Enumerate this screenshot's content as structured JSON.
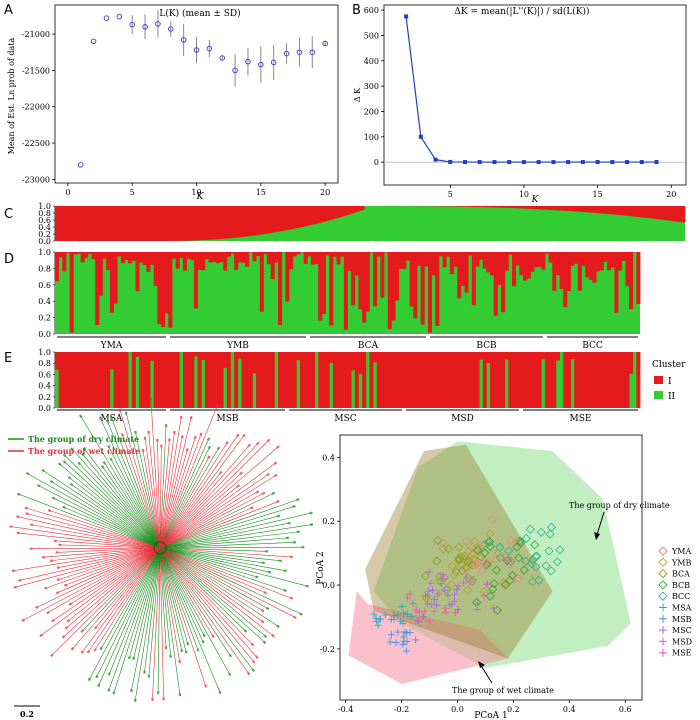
{
  "panels": {
    "A": {
      "label": "A",
      "title": "L(K) (mean ± SD)",
      "ylabel": "Mean of Est. Ln prob of data",
      "xlabel": "K"
    },
    "B": {
      "label": "B",
      "title": "ΔK = mean(|L''(K)|) / sd(L(K))",
      "ylabel": "Δ K",
      "xlabel": "K"
    },
    "C": {
      "label": "C"
    },
    "D": {
      "label": "D",
      "groups": [
        "YMA",
        "YMB",
        "BCA",
        "BCB",
        "BCC"
      ]
    },
    "E": {
      "label": "E",
      "groups": [
        "MSA",
        "MSB",
        "MSC",
        "MSD",
        "MSE"
      ]
    },
    "legend_cluster": {
      "title": "Cluster",
      "items": [
        {
          "name": "I",
          "color": "#e41a1c"
        },
        {
          "name": "II",
          "color": "#33cc33"
        }
      ]
    },
    "tree": {
      "legend_dry": "The group of dry climate",
      "legend_wet": "The group of wet climate",
      "scale_label": "0.2",
      "dry_color": "#1a8a1a",
      "wet_color": "#e8303a"
    },
    "pcoa": {
      "xlabel": "PCoA 1",
      "ylabel": "PCoA 2",
      "annotation_dry": "The group of dry climate",
      "annotation_wet": "The group of wet climate",
      "legend": [
        {
          "name": "YMA",
          "color": "#e8857a",
          "shape": "diamond"
        },
        {
          "name": "YMB",
          "color": "#b8a030",
          "shape": "diamond"
        },
        {
          "name": "BCA",
          "color": "#8ca020",
          "shape": "diamond"
        },
        {
          "name": "BCB",
          "color": "#3aa030",
          "shape": "diamond"
        },
        {
          "name": "BCC",
          "color": "#30b08a",
          "shape": "diamond"
        },
        {
          "name": "MSA",
          "color": "#30a8c8",
          "shape": "cross"
        },
        {
          "name": "MSB",
          "color": "#5090e0",
          "shape": "cross"
        },
        {
          "name": "MSC",
          "color": "#9a70e0",
          "shape": "cross"
        },
        {
          "name": "MSD",
          "color": "#d060d8",
          "shape": "cross"
        },
        {
          "name": "MSE",
          "color": "#e860a8",
          "shape": "cross"
        }
      ]
    }
  },
  "chart_data": [
    {
      "type": "scatter",
      "id": "A",
      "title": "L(K) (mean ± SD)",
      "xlabel": "K",
      "ylabel": "Mean of Est. Ln prob of data",
      "x": [
        1,
        2,
        3,
        4,
        5,
        6,
        7,
        8,
        9,
        10,
        11,
        12,
        13,
        14,
        15,
        16,
        17,
        18,
        19,
        20
      ],
      "y": [
        -22800,
        -21100,
        -20780,
        -20760,
        -20870,
        -20900,
        -20860,
        -20930,
        -21080,
        -21220,
        -21200,
        -21330,
        -21500,
        -21380,
        -21420,
        -21390,
        -21270,
        -21250,
        -21250,
        -21130
      ],
      "sd": [
        0,
        0,
        0,
        0,
        130,
        170,
        190,
        110,
        220,
        180,
        120,
        30,
        220,
        190,
        250,
        240,
        140,
        200,
        220,
        40
      ],
      "xlim": [
        -1,
        21
      ],
      "ylim": [
        -23050,
        -20600
      ],
      "xticks": [
        0,
        5,
        10,
        15,
        20
      ],
      "yticks": [
        -23000,
        -22500,
        -22000,
        -21500,
        -21000
      ]
    },
    {
      "type": "line",
      "id": "B",
      "title": "ΔK = mean(|L''(K)|) / sd(L(K))",
      "xlabel": "K",
      "ylabel": "Δ K",
      "x": [
        2,
        3,
        4,
        5,
        6,
        7,
        8,
        9,
        10,
        11,
        12,
        13,
        14,
        15,
        16,
        17,
        18,
        19
      ],
      "y": [
        575,
        100,
        10,
        1,
        0.5,
        0.5,
        0.5,
        0.5,
        0.5,
        0.5,
        0.5,
        0.5,
        0.5,
        0.5,
        0.5,
        0.5,
        0.5,
        0.5
      ],
      "xlim": [
        0.5,
        21
      ],
      "ylim": [
        -90,
        620
      ],
      "xticks": [
        5,
        10,
        15,
        20
      ],
      "yticks": [
        0,
        100,
        200,
        300,
        400,
        500,
        600
      ]
    },
    {
      "type": "bar",
      "id": "C",
      "stacked": true,
      "series": [
        {
          "name": "I",
          "color": "#e41a1c"
        },
        {
          "name": "II",
          "color": "#33cc33"
        }
      ],
      "yticks": [
        0.0,
        0.2,
        0.4,
        0.6,
        0.8,
        1.0
      ],
      "description_values": "sorted admixture proportions of cluster I"
    },
    {
      "type": "bar",
      "id": "D",
      "stacked": true,
      "categories": [
        "YMA",
        "YMB",
        "BCA",
        "BCB",
        "BCC"
      ],
      "yticks": [
        0.0,
        0.2,
        0.4,
        0.6,
        0.8,
        1.0
      ]
    },
    {
      "type": "bar",
      "id": "E",
      "stacked": true,
      "categories": [
        "MSA",
        "MSB",
        "MSC",
        "MSD",
        "MSE"
      ],
      "yticks": [
        0.0,
        0.2,
        0.4,
        0.6,
        0.8,
        1.0
      ]
    },
    {
      "type": "scatter",
      "id": "PCoA",
      "xlabel": "PCoA 1",
      "ylabel": "PCoA 2",
      "xlim": [
        -0.42,
        0.66
      ],
      "ylim": [
        -0.36,
        0.47
      ],
      "xticks": [
        -0.4,
        -0.2,
        0.0,
        0.2,
        0.4,
        0.6
      ],
      "yticks": [
        -0.2,
        0.0,
        0.2,
        0.4
      ]
    }
  ]
}
